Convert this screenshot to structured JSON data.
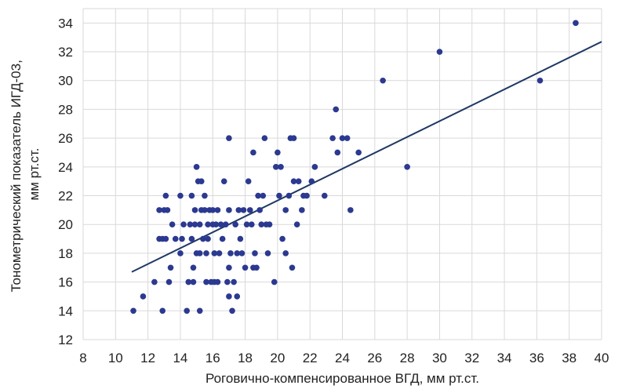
{
  "chart_data": {
    "type": "scatter",
    "title": "",
    "xlabel": "Роговично-компенсированное ВГД, мм рт.ст.",
    "ylabel_lines": [
      "Тонометрический показатель ИГД-03,",
      "мм рт.ст."
    ],
    "xlim": [
      8,
      40
    ],
    "ylim": [
      12,
      35
    ],
    "xticks": [
      8,
      10,
      12,
      14,
      16,
      18,
      20,
      22,
      24,
      26,
      28,
      30,
      32,
      34,
      36,
      38,
      40
    ],
    "yticks": [
      12,
      14,
      16,
      18,
      20,
      22,
      24,
      26,
      28,
      30,
      32,
      34
    ],
    "grid": true,
    "legend": "none",
    "colors": {
      "points": "#2b3990",
      "trendline": "#1f3864",
      "grid": "#d9d9d9",
      "text": "#222222"
    },
    "trendline": {
      "x": [
        11,
        40
      ],
      "y": [
        16.7,
        32.7
      ]
    },
    "points": [
      [
        11.1,
        14
      ],
      [
        11.7,
        15
      ],
      [
        12.4,
        16
      ],
      [
        12.7,
        19
      ],
      [
        12.7,
        21
      ],
      [
        12.9,
        14
      ],
      [
        12.9,
        19
      ],
      [
        13.0,
        21
      ],
      [
        13.1,
        22
      ],
      [
        13.1,
        19
      ],
      [
        13.2,
        21
      ],
      [
        13.3,
        16
      ],
      [
        13.4,
        17
      ],
      [
        13.5,
        20
      ],
      [
        13.7,
        19
      ],
      [
        14.0,
        18
      ],
      [
        14.0,
        22
      ],
      [
        14.1,
        19
      ],
      [
        14.2,
        20
      ],
      [
        14.4,
        14
      ],
      [
        14.5,
        16
      ],
      [
        14.6,
        20
      ],
      [
        14.7,
        22
      ],
      [
        14.7,
        19
      ],
      [
        14.8,
        17
      ],
      [
        14.8,
        16
      ],
      [
        14.9,
        21
      ],
      [
        14.9,
        20
      ],
      [
        15.0,
        24
      ],
      [
        15.0,
        18
      ],
      [
        15.1,
        23
      ],
      [
        15.2,
        20
      ],
      [
        15.2,
        18
      ],
      [
        15.2,
        14
      ],
      [
        15.3,
        23
      ],
      [
        15.3,
        21
      ],
      [
        15.4,
        19
      ],
      [
        15.5,
        22
      ],
      [
        15.5,
        21
      ],
      [
        15.6,
        16
      ],
      [
        15.6,
        18
      ],
      [
        15.7,
        20
      ],
      [
        15.7,
        19
      ],
      [
        15.8,
        21
      ],
      [
        15.9,
        16
      ],
      [
        16.0,
        20
      ],
      [
        16.0,
        21
      ],
      [
        16.1,
        18
      ],
      [
        16.1,
        16
      ],
      [
        16.2,
        20
      ],
      [
        16.3,
        21
      ],
      [
        16.3,
        16
      ],
      [
        16.4,
        18
      ],
      [
        16.5,
        20
      ],
      [
        16.6,
        19
      ],
      [
        16.7,
        23
      ],
      [
        16.8,
        20
      ],
      [
        16.9,
        16
      ],
      [
        17.0,
        26
      ],
      [
        17.0,
        21
      ],
      [
        17.0,
        17
      ],
      [
        17.0,
        15
      ],
      [
        17.1,
        18
      ],
      [
        17.2,
        14
      ],
      [
        17.3,
        16
      ],
      [
        17.4,
        20
      ],
      [
        17.5,
        18
      ],
      [
        17.5,
        15
      ],
      [
        17.6,
        21
      ],
      [
        17.7,
        19
      ],
      [
        17.8,
        18
      ],
      [
        17.9,
        21
      ],
      [
        18.0,
        17
      ],
      [
        18.1,
        20
      ],
      [
        18.2,
        23
      ],
      [
        18.3,
        21
      ],
      [
        18.4,
        20
      ],
      [
        18.5,
        25
      ],
      [
        18.5,
        17
      ],
      [
        18.6,
        18
      ],
      [
        18.7,
        17
      ],
      [
        18.8,
        22
      ],
      [
        18.9,
        21
      ],
      [
        19.0,
        20
      ],
      [
        19.1,
        22
      ],
      [
        19.2,
        26
      ],
      [
        19.3,
        20
      ],
      [
        19.4,
        18
      ],
      [
        19.5,
        20
      ],
      [
        19.8,
        16
      ],
      [
        19.9,
        24
      ],
      [
        20.0,
        25
      ],
      [
        20.1,
        22
      ],
      [
        20.2,
        24
      ],
      [
        20.3,
        19
      ],
      [
        20.5,
        21
      ],
      [
        20.5,
        18
      ],
      [
        20.7,
        22
      ],
      [
        20.8,
        26
      ],
      [
        20.9,
        17
      ],
      [
        21.0,
        23
      ],
      [
        21.0,
        26
      ],
      [
        21.2,
        20
      ],
      [
        21.3,
        23
      ],
      [
        21.5,
        21
      ],
      [
        21.6,
        22
      ],
      [
        21.8,
        22
      ],
      [
        22.1,
        23
      ],
      [
        22.3,
        24
      ],
      [
        22.9,
        22
      ],
      [
        23.4,
        26
      ],
      [
        23.6,
        28
      ],
      [
        23.7,
        25
      ],
      [
        24.0,
        26
      ],
      [
        24.3,
        26
      ],
      [
        24.5,
        21
      ],
      [
        25.0,
        25
      ],
      [
        26.5,
        30
      ],
      [
        28.0,
        24
      ],
      [
        30.0,
        32
      ],
      [
        36.2,
        30
      ],
      [
        38.4,
        34
      ]
    ]
  }
}
